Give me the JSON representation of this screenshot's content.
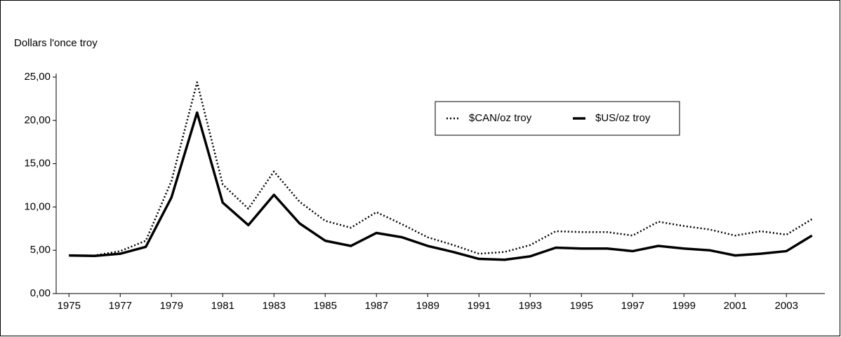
{
  "chart_data": {
    "type": "line",
    "y_label": "Dollars l'once troy",
    "x": [
      1975,
      1976,
      1977,
      1978,
      1979,
      1980,
      1981,
      1982,
      1983,
      1984,
      1985,
      1986,
      1987,
      1988,
      1989,
      1990,
      1991,
      1992,
      1993,
      1994,
      1995,
      1996,
      1997,
      1998,
      1999,
      2000,
      2001,
      2002,
      2003,
      2004
    ],
    "series": [
      {
        "name": "$CAN/oz troy",
        "color": "#000000",
        "style": "dotted",
        "values": [
          4.4,
          4.4,
          4.9,
          6.1,
          13.0,
          24.4,
          12.6,
          9.8,
          14.1,
          10.6,
          8.4,
          7.6,
          9.4,
          8.0,
          6.5,
          5.6,
          4.6,
          4.8,
          5.6,
          7.2,
          7.1,
          7.1,
          6.7,
          8.3,
          7.8,
          7.4,
          6.7,
          7.2,
          6.8,
          8.6
        ]
      },
      {
        "name": "$US/oz troy",
        "color": "#000000",
        "style": "solid",
        "values": [
          4.4,
          4.35,
          4.6,
          5.4,
          11.1,
          20.9,
          10.5,
          7.9,
          11.4,
          8.1,
          6.1,
          5.5,
          7.0,
          6.5,
          5.5,
          4.8,
          4.0,
          3.9,
          4.3,
          5.3,
          5.2,
          5.2,
          4.9,
          5.5,
          5.2,
          5.0,
          4.4,
          4.6,
          4.9,
          6.7
        ]
      }
    ],
    "xlim": [
      1974.5,
      2004.5
    ],
    "xticks": [
      1975,
      1977,
      1979,
      1981,
      1983,
      1985,
      1987,
      1989,
      1991,
      1993,
      1995,
      1997,
      1999,
      2001,
      2003
    ],
    "ylim": [
      0,
      25
    ],
    "yticks": [
      {
        "value": 0,
        "label": "0,00"
      },
      {
        "value": 5,
        "label": "5,00"
      },
      {
        "value": 10,
        "label": "10,00"
      },
      {
        "value": 15,
        "label": "15,00"
      },
      {
        "value": 20,
        "label": "20,00"
      },
      {
        "value": 25,
        "label": "25,00"
      }
    ],
    "grid": false
  }
}
